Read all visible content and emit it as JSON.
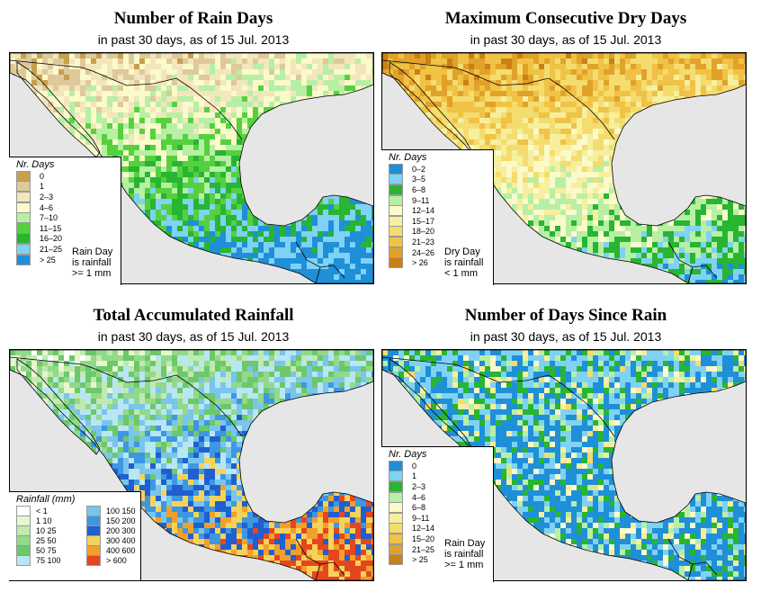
{
  "panels": [
    {
      "title": "Number of Rain Days",
      "subtitle": "in past 30 days, as of  15 Jul. 2013",
      "legend_title": "Nr. Days",
      "legend": [
        {
          "label": "0",
          "color": "#c8a04c"
        },
        {
          "label": "1",
          "color": "#dfc99b"
        },
        {
          "label": "2–3",
          "color": "#f2e6bc"
        },
        {
          "label": "4–6",
          "color": "#fafacb"
        },
        {
          "label": "7–10",
          "color": "#b7efa4"
        },
        {
          "label": "11–15",
          "color": "#55d13e"
        },
        {
          "label": "16–20",
          "color": "#27b532"
        },
        {
          "label": "21–25",
          "color": "#7fd2f4"
        },
        {
          "label": "> 25",
          "color": "#1f8fd8"
        }
      ],
      "note": [
        "Rain Day",
        "is rainfall",
        ">= 1 mm"
      ]
    },
    {
      "title": "Maximum Consecutive Dry Days",
      "subtitle": "in past 30 days, as of  15 Jul. 2013",
      "legend_title": "Nr. Days",
      "legend": [
        {
          "label": "0–2",
          "color": "#1f8fd8"
        },
        {
          "label": "3–5",
          "color": "#7fd2f4"
        },
        {
          "label": "6–8",
          "color": "#27b532"
        },
        {
          "label": "9–11",
          "color": "#b7efa4"
        },
        {
          "label": "12–14",
          "color": "#fafacb"
        },
        {
          "label": "15–17",
          "color": "#f6ef9e"
        },
        {
          "label": "18–20",
          "color": "#f4dc6e"
        },
        {
          "label": "21–23",
          "color": "#f0c245"
        },
        {
          "label": "24–26",
          "color": "#e1a22a"
        },
        {
          "label": "> 26",
          "color": "#c98015"
        }
      ],
      "note": [
        "Dry Day",
        "is rainfall",
        "< 1 mm"
      ]
    },
    {
      "title": "Total Accumulated Rainfall",
      "subtitle": "in past 30 days, as of  15 Jul. 2013",
      "legend_title": "Rainfall (mm)",
      "legend_left": [
        {
          "label": "< 1",
          "color": "#ffffff"
        },
        {
          "label": "1   10",
          "color": "#e6f6cf"
        },
        {
          "label": "10   25",
          "color": "#bfeab0"
        },
        {
          "label": "25   50",
          "color": "#93d98a"
        },
        {
          "label": "50   75",
          "color": "#6cc86a"
        },
        {
          "label": "75   100",
          "color": "#b8e6f2"
        }
      ],
      "legend_right": [
        {
          "label": "100   150",
          "color": "#78c5ee"
        },
        {
          "label": "150   200",
          "color": "#3e97e0"
        },
        {
          "label": "200   300",
          "color": "#1f5fd0"
        },
        {
          "label": "300   400",
          "color": "#f5d35a"
        },
        {
          "label": "400   600",
          "color": "#f1a02c"
        },
        {
          "label": "> 600",
          "color": "#e6461e"
        }
      ],
      "note": []
    },
    {
      "title": "Number of Days Since Rain",
      "subtitle": "in past 30 days, as of  15 Jul. 2013",
      "legend_title": "Nr. Days",
      "legend": [
        {
          "label": "0",
          "color": "#1f8fd8"
        },
        {
          "label": "1",
          "color": "#7fd2f4"
        },
        {
          "label": "2–3",
          "color": "#27b532"
        },
        {
          "label": "4–6",
          "color": "#b7efa4"
        },
        {
          "label": "6–8",
          "color": "#fafacb"
        },
        {
          "label": "9–11",
          "color": "#f6ef9e"
        },
        {
          "label": "12–14",
          "color": "#f4dc6e"
        },
        {
          "label": "15–20",
          "color": "#f0c245"
        },
        {
          "label": "21–25",
          "color": "#e1a22a"
        },
        {
          "label": "> 25",
          "color": "#c98015"
        }
      ],
      "note": [
        "Rain Day",
        "is rainfall",
        ">= 1 mm"
      ]
    }
  ],
  "colors": {
    "ocean": "#e6e6e6",
    "border": "#000000",
    "legend_bg": "#ffffff"
  }
}
